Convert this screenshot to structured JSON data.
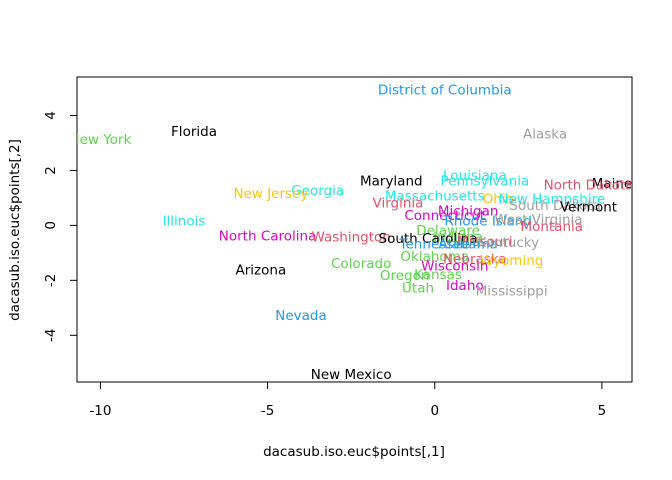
{
  "chart_data": {
    "type": "scatter",
    "title": "",
    "xlabel": "dacasub.iso.euc$points[,1]",
    "ylabel": "dacasub.iso.euc$points[,2]",
    "xlim": [
      -10.7,
      5.9
    ],
    "ylim": [
      -5.7,
      5.4
    ],
    "xticks": [
      -10,
      -5,
      0,
      5
    ],
    "yticks": [
      -4,
      -2,
      0,
      2,
      4
    ],
    "grid": false,
    "points": [
      {
        "label": "District of Columbia",
        "x": 0.3,
        "y": 4.9,
        "color": "#2297E6"
      },
      {
        "label": "Alaska",
        "x": 3.3,
        "y": 3.3,
        "color": "#9E9E9E"
      },
      {
        "label": "New York",
        "x": -10.0,
        "y": 3.1,
        "color": "#61D04F"
      },
      {
        "label": "Florida",
        "x": -7.2,
        "y": 3.4,
        "color": "#000000"
      },
      {
        "label": "Louisiana",
        "x": 1.2,
        "y": 1.8,
        "color": "#28E2E5"
      },
      {
        "label": "Pennsylvania",
        "x": 1.5,
        "y": 1.6,
        "color": "#28E2E5"
      },
      {
        "label": "Maine",
        "x": 5.3,
        "y": 1.5,
        "color": "#000000"
      },
      {
        "label": "North Dakota",
        "x": 4.6,
        "y": 1.45,
        "color": "#DF536B"
      },
      {
        "label": "Maryland",
        "x": -1.3,
        "y": 1.6,
        "color": "#000000"
      },
      {
        "label": "Georgia",
        "x": -3.5,
        "y": 1.25,
        "color": "#28E2E5"
      },
      {
        "label": "New Jersey",
        "x": -4.9,
        "y": 1.15,
        "color": "#F5C710"
      },
      {
        "label": "Massachusetts",
        "x": 0.0,
        "y": 1.05,
        "color": "#28E2E5"
      },
      {
        "label": "Ohio",
        "x": 1.9,
        "y": 0.95,
        "color": "#F5C710"
      },
      {
        "label": "New Hampshire",
        "x": 3.5,
        "y": 0.95,
        "color": "#28E2E5"
      },
      {
        "label": "South Dakota",
        "x": 3.6,
        "y": 0.7,
        "color": "#9E9E9E"
      },
      {
        "label": "Vermont",
        "x": 4.6,
        "y": 0.65,
        "color": "#000000"
      },
      {
        "label": "Virginia",
        "x": -1.1,
        "y": 0.8,
        "color": "#DF536B"
      },
      {
        "label": "Michigan",
        "x": 1.0,
        "y": 0.5,
        "color": "#CD0BBC"
      },
      {
        "label": "Connecticut",
        "x": 0.3,
        "y": 0.35,
        "color": "#CD0BBC"
      },
      {
        "label": "Rhode Island",
        "x": 1.6,
        "y": 0.15,
        "color": "#2297E6"
      },
      {
        "label": "West Virginia",
        "x": 3.1,
        "y": 0.2,
        "color": "#9E9E9E"
      },
      {
        "label": "Montania",
        "x": 3.5,
        "y": -0.05,
        "color": "#DF536B"
      },
      {
        "label": "Illinois",
        "x": -7.5,
        "y": 0.15,
        "color": "#28E2E5"
      },
      {
        "label": "Delaware",
        "x": 0.4,
        "y": -0.2,
        "color": "#61D04F"
      },
      {
        "label": "Indiana",
        "x": 0.7,
        "y": -0.45,
        "color": "#61D04F"
      },
      {
        "label": "North Carolina",
        "x": -5.0,
        "y": -0.4,
        "color": "#CD0BBC"
      },
      {
        "label": "Washington",
        "x": -2.5,
        "y": -0.45,
        "color": "#DF536B"
      },
      {
        "label": "South Carolina",
        "x": -0.2,
        "y": -0.5,
        "color": "#000000"
      },
      {
        "label": "Missouri",
        "x": 1.5,
        "y": -0.6,
        "color": "#DF536B"
      },
      {
        "label": "Tennessee",
        "x": 0.0,
        "y": -0.7,
        "color": "#2297E6"
      },
      {
        "label": "Alabama",
        "x": 1.0,
        "y": -0.7,
        "color": "#2297E6"
      },
      {
        "label": "Kentucky",
        "x": 2.2,
        "y": -0.65,
        "color": "#9E9E9E"
      },
      {
        "label": "Oklahoma",
        "x": 0.0,
        "y": -1.15,
        "color": "#61D04F"
      },
      {
        "label": "Nebraska",
        "x": 1.2,
        "y": -1.25,
        "color": "#DF536B"
      },
      {
        "label": "Wyoming",
        "x": 2.3,
        "y": -1.3,
        "color": "#F5C710"
      },
      {
        "label": "Wisconsin",
        "x": 0.6,
        "y": -1.5,
        "color": "#CD0BBC"
      },
      {
        "label": "Colorado",
        "x": -2.2,
        "y": -1.4,
        "color": "#61D04F"
      },
      {
        "label": "Arizona",
        "x": -5.2,
        "y": -1.65,
        "color": "#000000"
      },
      {
        "label": "Oregon",
        "x": -0.9,
        "y": -1.85,
        "color": "#61D04F"
      },
      {
        "label": "Kansas",
        "x": 0.1,
        "y": -1.8,
        "color": "#61D04F"
      },
      {
        "label": "Idaho",
        "x": 0.9,
        "y": -2.2,
        "color": "#CD0BBC"
      },
      {
        "label": "Utah",
        "x": -0.5,
        "y": -2.3,
        "color": "#61D04F"
      },
      {
        "label": "Mississippi",
        "x": 2.3,
        "y": -2.4,
        "color": "#9E9E9E"
      },
      {
        "label": "Nevada",
        "x": -4.0,
        "y": -3.3,
        "color": "#2297E6"
      },
      {
        "label": "New Mexico",
        "x": -2.5,
        "y": -5.45,
        "color": "#000000"
      }
    ]
  }
}
